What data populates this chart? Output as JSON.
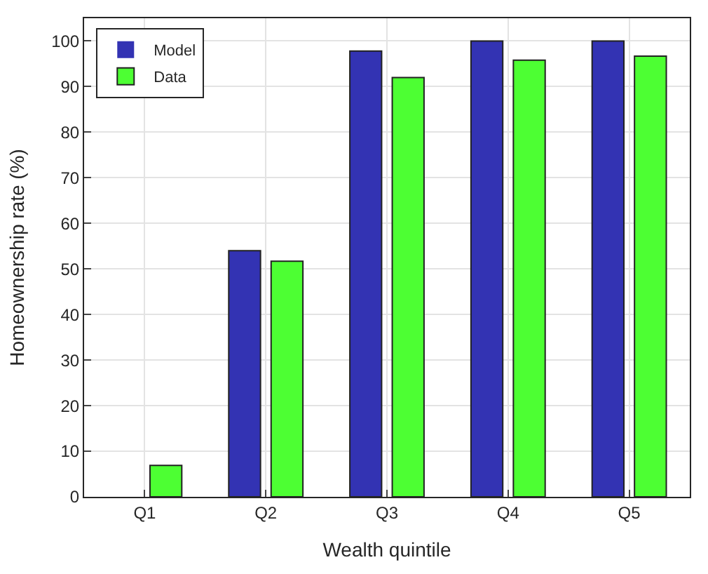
{
  "chart_data": {
    "type": "bar",
    "xlabel": "Wealth quintile",
    "ylabel": "Homeownership rate (%)",
    "categories": [
      "Q1",
      "Q2",
      "Q3",
      "Q4",
      "Q5"
    ],
    "series": [
      {
        "name": "Model",
        "color": "#3333b3",
        "values": [
          0,
          54,
          97.8,
          100,
          100
        ]
      },
      {
        "name": "Data",
        "color": "#4dff33",
        "values": [
          6.9,
          51.7,
          92,
          95.8,
          96.7
        ]
      }
    ],
    "ylim": [
      0,
      105
    ],
    "yticks": [
      0,
      10,
      20,
      30,
      40,
      50,
      60,
      70,
      80,
      90,
      100
    ],
    "grid": true,
    "legend": "top left"
  }
}
